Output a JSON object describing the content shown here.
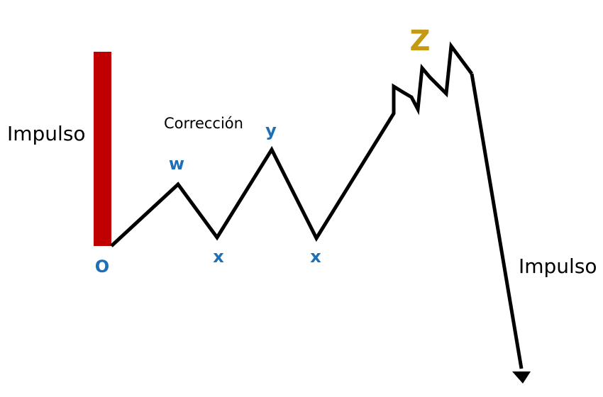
{
  "colors": {
    "impulse_bar": "#c00000",
    "wave_label": "#1f6fb5",
    "z_label": "#c39a12",
    "path": "#000000",
    "text": "#000000"
  },
  "labels": {
    "impulse_left": "Impulso",
    "correction": "Corrección",
    "impulse_right": "Impulso",
    "origin": "O",
    "w": "w",
    "x1": "x",
    "y": "y",
    "x2": "x",
    "z": "Z"
  }
}
